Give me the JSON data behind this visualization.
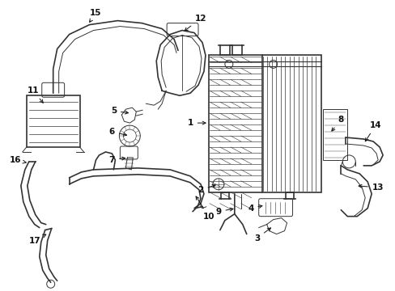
{
  "background_color": "#ffffff",
  "line_color": "#333333",
  "label_color": "#111111",
  "figsize": [
    4.89,
    3.6
  ],
  "dpi": 100,
  "xlim": [
    0,
    489
  ],
  "ylim": [
    0,
    360
  ]
}
